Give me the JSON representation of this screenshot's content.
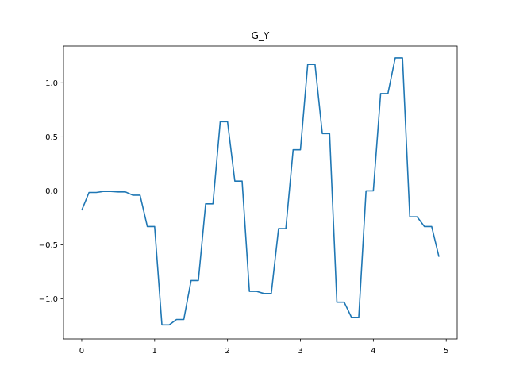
{
  "chart_data": {
    "type": "line",
    "title": "G_Y",
    "xlabel": "",
    "ylabel": "",
    "xlim": [
      -0.25,
      5.15
    ],
    "ylim": [
      -1.37,
      1.34
    ],
    "xticks": [
      0,
      1,
      2,
      3,
      4,
      5
    ],
    "xtick_labels": [
      "0",
      "1",
      "2",
      "3",
      "4",
      "5"
    ],
    "yticks": [
      -1.0,
      -0.5,
      0.0,
      0.5,
      1.0
    ],
    "ytick_labels": [
      "−1.0",
      "−0.5",
      "0.0",
      "0.5",
      "1.0"
    ],
    "grid": false,
    "series": [
      {
        "color": "#1f77b4",
        "x": [
          0.0,
          0.1,
          0.2,
          0.3,
          0.4,
          0.5,
          0.6,
          0.7,
          0.8,
          0.9,
          1.0,
          1.1,
          1.2,
          1.3,
          1.4,
          1.5,
          1.6,
          1.7,
          1.8,
          1.9,
          2.0,
          2.1,
          2.2,
          2.3,
          2.4,
          2.5,
          2.6,
          2.7,
          2.8,
          2.9,
          3.0,
          3.1,
          3.2,
          3.3,
          3.4,
          3.5,
          3.6,
          3.7,
          3.8,
          3.9,
          4.0,
          4.1,
          4.2,
          4.3,
          4.4,
          4.5,
          4.6,
          4.7,
          4.8,
          4.9
        ],
        "y": [
          -0.18,
          -0.015,
          -0.015,
          -0.005,
          -0.005,
          -0.01,
          -0.01,
          -0.04,
          -0.04,
          -0.33,
          -0.33,
          -1.24,
          -1.24,
          -1.19,
          -1.19,
          -0.83,
          -0.83,
          -0.12,
          -0.12,
          0.64,
          0.64,
          0.09,
          0.09,
          -0.93,
          -0.93,
          -0.95,
          -0.95,
          -0.35,
          -0.35,
          0.38,
          0.38,
          1.17,
          1.17,
          0.53,
          0.53,
          -1.03,
          -1.03,
          -1.17,
          -1.17,
          0.0,
          0.0,
          0.9,
          0.9,
          1.23,
          1.23,
          -0.24,
          -0.24,
          -0.33,
          -0.33,
          -0.61
        ]
      }
    ]
  }
}
